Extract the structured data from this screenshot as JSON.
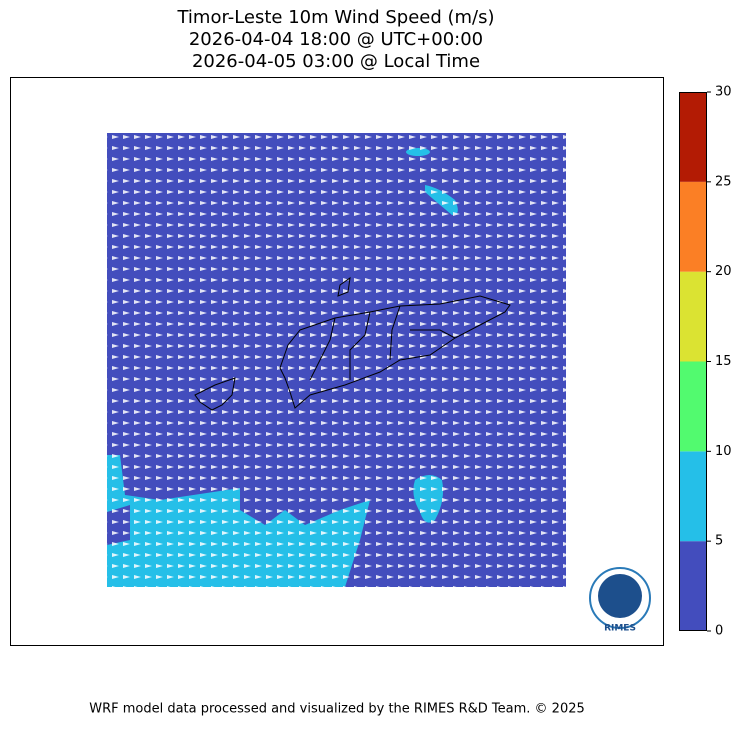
{
  "title_lines": [
    "Timor-Leste 10m Wind Speed (m/s)",
    "2026-04-04 18:00 @ UTC+00:00",
    "2026-04-05 03:00 @ Local Time"
  ],
  "colorbar": {
    "ticks": [
      0,
      5,
      10,
      15,
      20,
      25,
      30
    ],
    "colors": [
      "#434dbd",
      "#25bfe8",
      "#52fa6f",
      "#dbe332",
      "#fb7f25",
      "#b31b04"
    ]
  },
  "logo_text": "RIMES",
  "footer": "WRF model data processed and visualized by the RIMES R&D Team. © 2025"
}
